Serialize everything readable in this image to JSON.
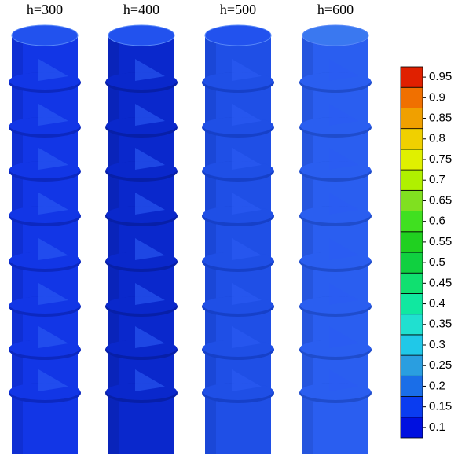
{
  "labels": [
    "h=300",
    "h=400",
    "h=500",
    "h=600"
  ],
  "colorbar": {
    "ticks": [
      0.1,
      0.15,
      0.2,
      0.25,
      0.3,
      0.35,
      0.4,
      0.45,
      0.5,
      0.55,
      0.6,
      0.65,
      0.7,
      0.75,
      0.8,
      0.85,
      0.9,
      0.95
    ],
    "colors": [
      "#0010e0",
      "#0a3cf0",
      "#1a6ee8",
      "#2a9ee0",
      "#20c8e8",
      "#20e0d0",
      "#10e8a0",
      "#10e070",
      "#10d040",
      "#20d020",
      "#40e020",
      "#80e020",
      "#b0f000",
      "#e0f000",
      "#f0d000",
      "#f0a000",
      "#f07000",
      "#e02000"
    ]
  }
}
